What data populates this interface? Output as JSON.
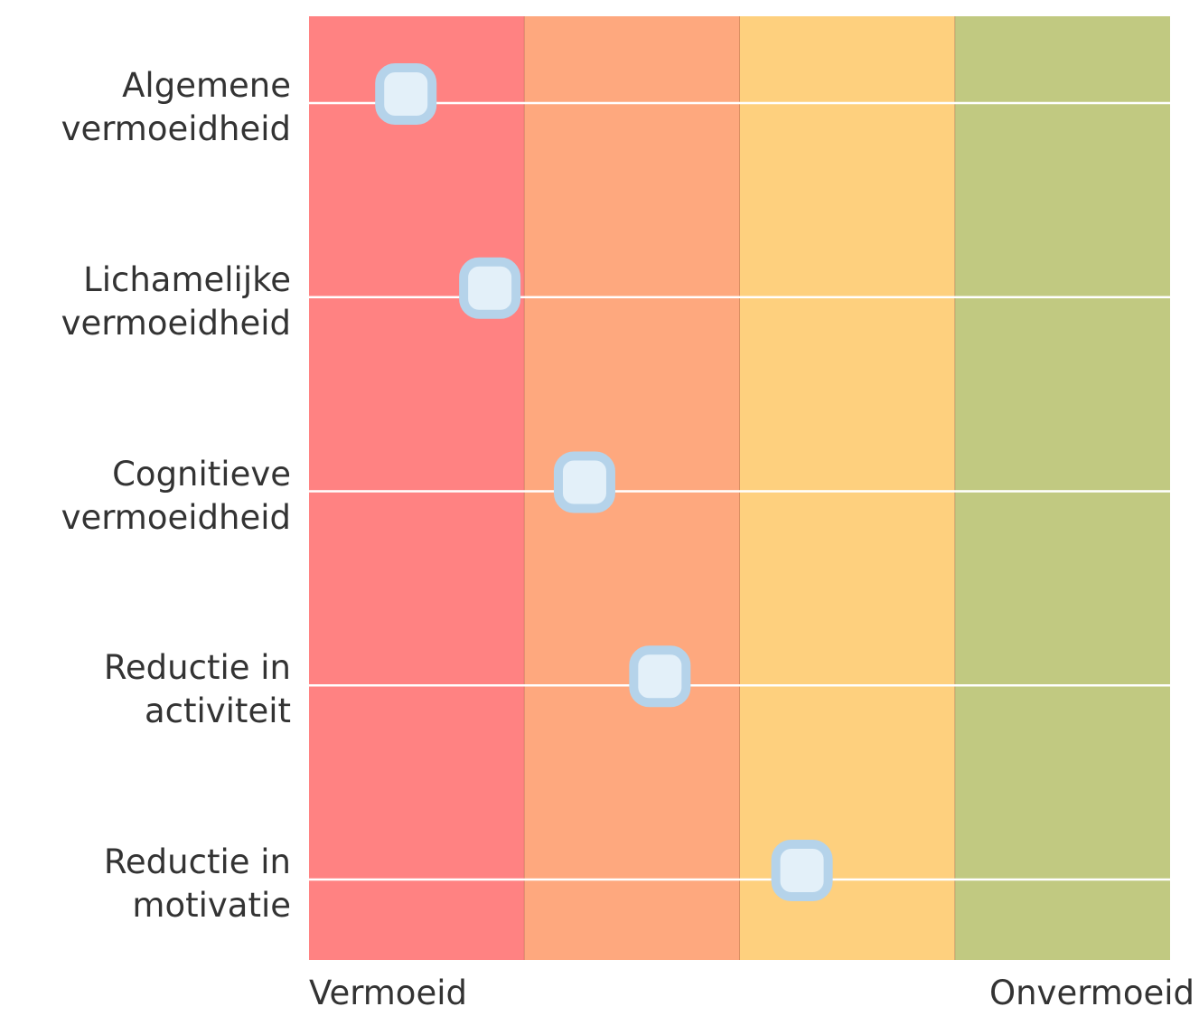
{
  "chart_data": {
    "type": "dot-scale",
    "categories": [
      "Algemene vermoeidheid",
      "Lichamelijke vermoeidheid",
      "Cognitieve vermoeidheid",
      "Reductie in activiteit",
      "Reductie in motivatie"
    ],
    "values": [
      0.45,
      0.84,
      1.28,
      1.63,
      2.29
    ],
    "xlim": [
      0,
      4
    ],
    "bands": [
      {
        "start": 0,
        "end": 1,
        "color": "#ff8282"
      },
      {
        "start": 1,
        "end": 2,
        "color": "#fea87e"
      },
      {
        "start": 2,
        "end": 3,
        "color": "#fed07e"
      },
      {
        "start": 3,
        "end": 4,
        "color": "#c1c981"
      }
    ],
    "marker_color": "#b5d3ea",
    "marker_fill": "#e3f0f9",
    "scale_labels": {
      "left": "Vermoeid",
      "right": "Onvermoeid"
    }
  }
}
